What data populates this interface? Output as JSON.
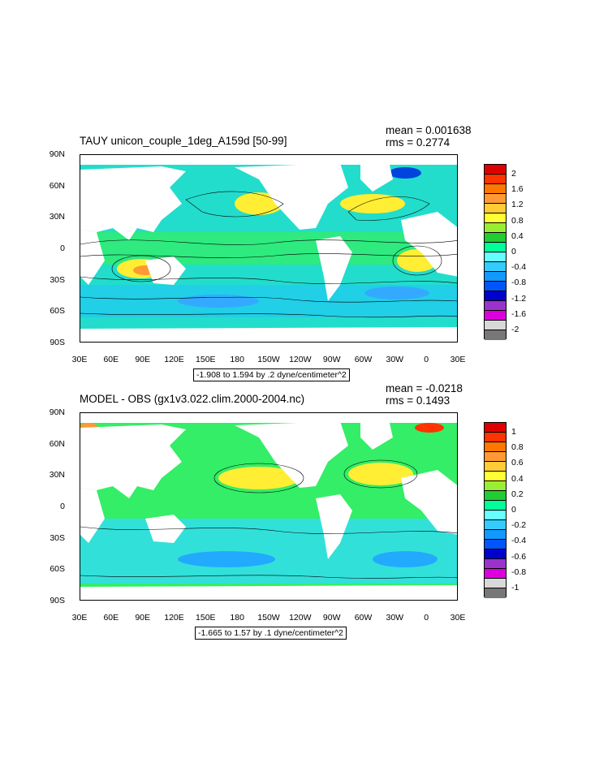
{
  "lat_labels": [
    "90N",
    "60N",
    "30N",
    "0",
    "30S",
    "60S",
    "90S"
  ],
  "lon_labels": [
    "30E",
    "60E",
    "90E",
    "120E",
    "150E",
    "180",
    "150W",
    "120W",
    "90W",
    "60W",
    "30W",
    "0",
    "30E"
  ],
  "panels": [
    {
      "title": "TAUY unicon_couple_1deg_A159d [50-99]",
      "mean": "mean = 0.001638",
      "rms": "rms = 0.2774",
      "note": "-1.908 to 1.594 by .2 dyne/centimeter^2",
      "colorbar": {
        "labels": [
          "2",
          "1.6",
          "1.2",
          "0.8",
          "0.4",
          "0",
          "-0.4",
          "-0.8",
          "-1.2",
          "-1.6",
          "-2"
        ],
        "colors": [
          "#dd0000",
          "#ff3300",
          "#ff7700",
          "#ff9933",
          "#ffcc33",
          "#ffff33",
          "#99ee33",
          "#22cc33",
          "#00ff99",
          "#66ffff",
          "#33ccff",
          "#1199ff",
          "#0055ff",
          "#0000cc",
          "#9933cc",
          "#dd00dd",
          "#d8d8d8",
          "#777777"
        ]
      }
    },
    {
      "title": "MODEL - OBS (gx1v3.022.clim.2000-2004.nc)",
      "mean": "mean = -0.0218",
      "rms": "rms = 0.1493",
      "note": "-1.665 to 1.57 by .1 dyne/centimeter^2",
      "colorbar": {
        "labels": [
          "1",
          "0.8",
          "0.6",
          "0.4",
          "0.2",
          "0",
          "-0.2",
          "-0.4",
          "-0.6",
          "-0.8",
          "-1"
        ],
        "colors": [
          "#dd0000",
          "#ff3300",
          "#ff7700",
          "#ff9933",
          "#ffcc33",
          "#ffff33",
          "#99ee33",
          "#22cc33",
          "#00ff99",
          "#66ffff",
          "#33ccff",
          "#1199ff",
          "#0055ff",
          "#0000cc",
          "#9933cc",
          "#dd00dd",
          "#d8d8d8",
          "#777777"
        ]
      }
    }
  ]
}
